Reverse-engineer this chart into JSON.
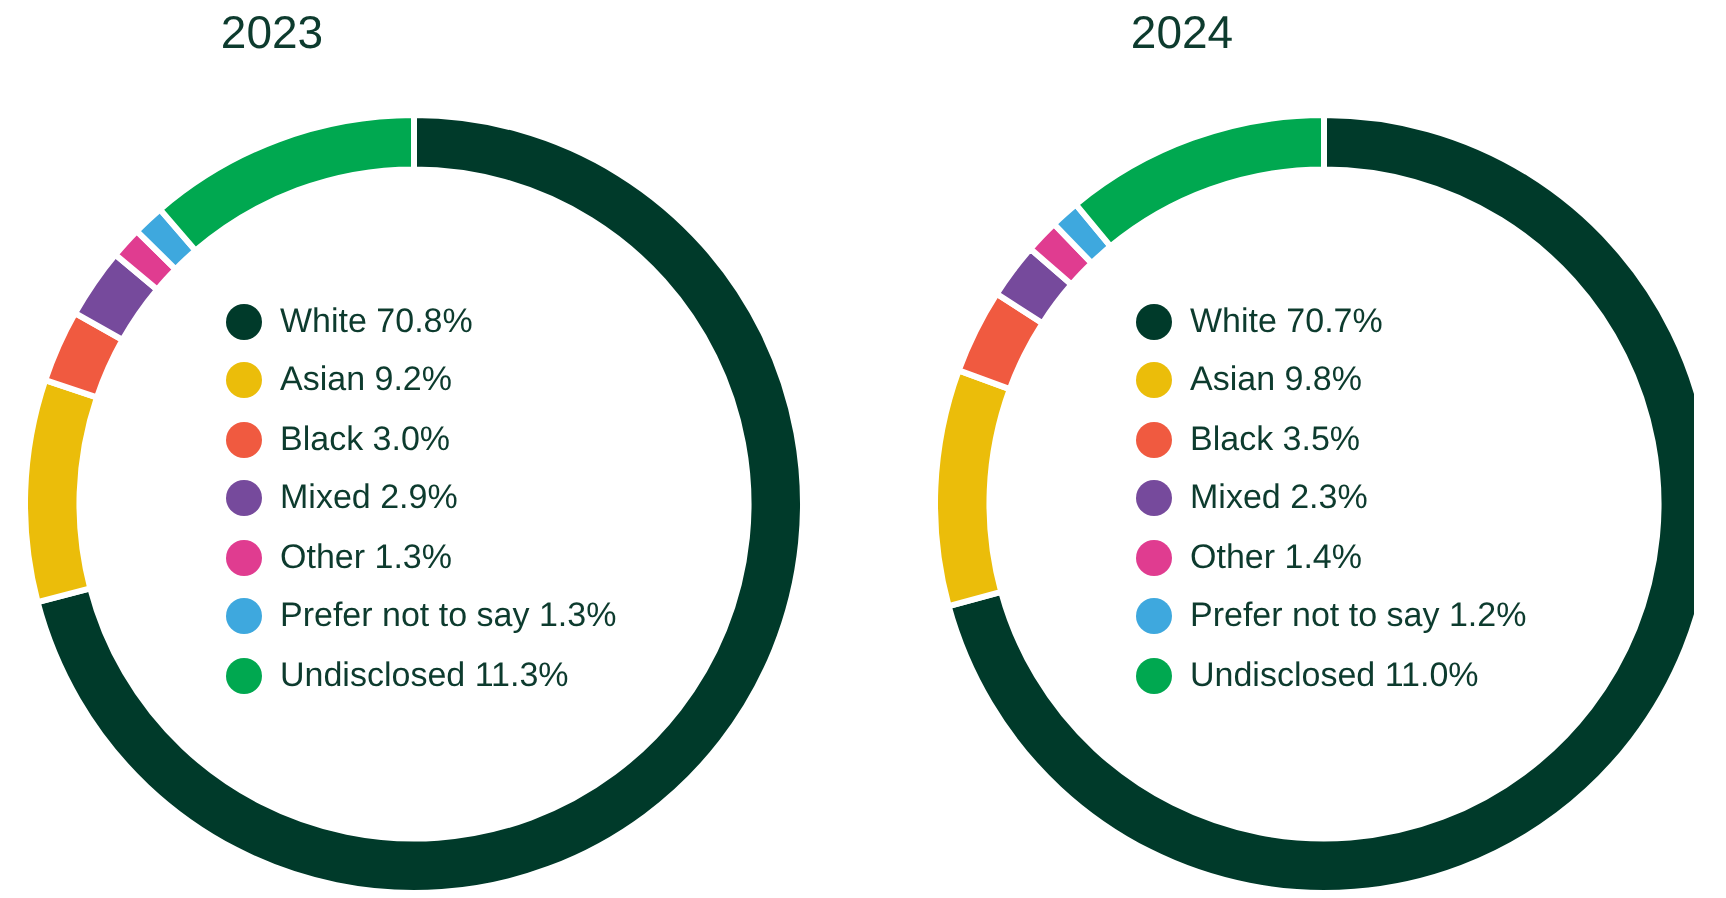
{
  "chart_data": [
    {
      "type": "donut",
      "title": "2023",
      "legend": "center",
      "categories": [
        "White",
        "Asian",
        "Black",
        "Mixed",
        "Other",
        "Prefer not to say",
        "Undisclosed"
      ],
      "values": [
        70.8,
        9.2,
        3.0,
        2.9,
        1.3,
        1.3,
        11.3
      ],
      "value_labels": [
        "70.8%",
        "9.2%",
        "3.0%",
        "2.9%",
        "1.3%",
        "1.3%",
        "11.3%"
      ],
      "colors": [
        "#003a2a",
        "#ebbd0a",
        "#f05a40",
        "#764a9c",
        "#e03c90",
        "#3ea8de",
        "#00a850"
      ]
    },
    {
      "type": "donut",
      "title": "2024",
      "legend": "center",
      "categories": [
        "White",
        "Asian",
        "Black",
        "Mixed",
        "Other",
        "Prefer not to say",
        "Undisclosed"
      ],
      "values": [
        70.7,
        9.8,
        3.5,
        2.3,
        1.4,
        1.2,
        11.0
      ],
      "value_labels": [
        "70.7%",
        "9.8%",
        "3.5%",
        "2.3%",
        "1.4%",
        "1.2%",
        "11.0%"
      ],
      "colors": [
        "#003a2a",
        "#ebbd0a",
        "#f05a40",
        "#764a9c",
        "#e03c90",
        "#3ea8de",
        "#00a850"
      ]
    }
  ]
}
